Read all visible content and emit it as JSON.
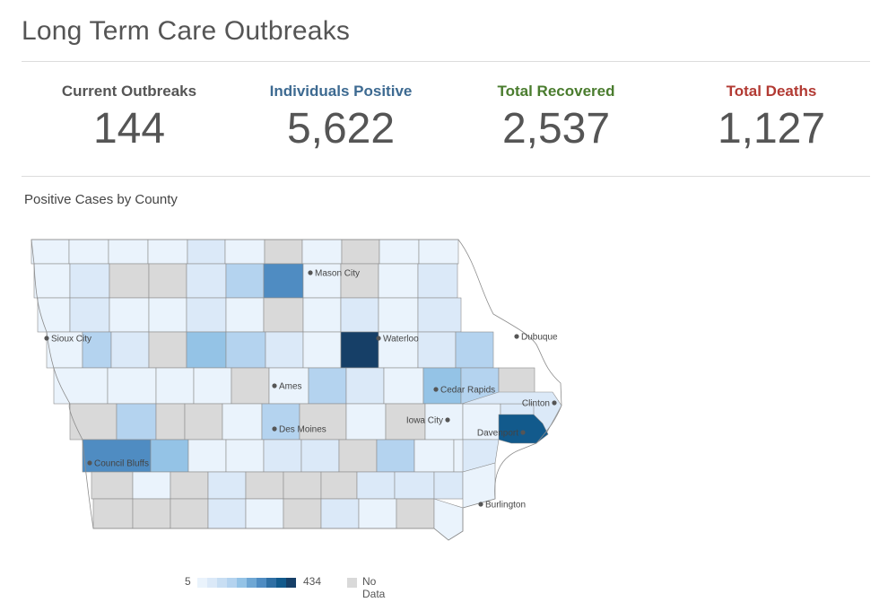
{
  "page": {
    "title": "Long Term Care Outbreaks",
    "map_title": "Positive Cases by County"
  },
  "stats": [
    {
      "label": "Current Outbreaks",
      "value": "144",
      "color": "#555555"
    },
    {
      "label": "Individuals Positive",
      "value": "5,622",
      "color": "#3d6a91"
    },
    {
      "label": "Total Recovered",
      "value": "2,537",
      "color": "#4a7c2e"
    },
    {
      "label": "Total Deaths",
      "value": "1,127",
      "color": "#b23a33"
    }
  ],
  "map": {
    "colors": {
      "nodata": "#d9d9d9",
      "c1": "#eaf3fc",
      "c2": "#dbe9f8",
      "c3": "#b4d3ef",
      "c4": "#94c3e6",
      "c5": "#4f8cc2",
      "c6": "#125a8c",
      "c7": "#163f67",
      "border": "#8c8c8c"
    },
    "cities": [
      {
        "name": "Mason City"
      },
      {
        "name": "Sioux City"
      },
      {
        "name": "Waterloo"
      },
      {
        "name": "Dubuque"
      },
      {
        "name": "Ames"
      },
      {
        "name": "Cedar Rapids"
      },
      {
        "name": "Clinton"
      },
      {
        "name": "Des Moines"
      },
      {
        "name": "Iowa City"
      },
      {
        "name": "Davenport"
      },
      {
        "name": "Council Bluffs"
      },
      {
        "name": "Burlington"
      }
    ]
  },
  "legend": {
    "min": "5",
    "max": "434",
    "nodata_label": "No Data",
    "steps": [
      "#eaf3fc",
      "#dbe9f8",
      "#c8def3",
      "#b4d3ef",
      "#94c3e6",
      "#6fa7d4",
      "#4f8cc2",
      "#2f6fa4",
      "#125a8c",
      "#163f67"
    ]
  }
}
